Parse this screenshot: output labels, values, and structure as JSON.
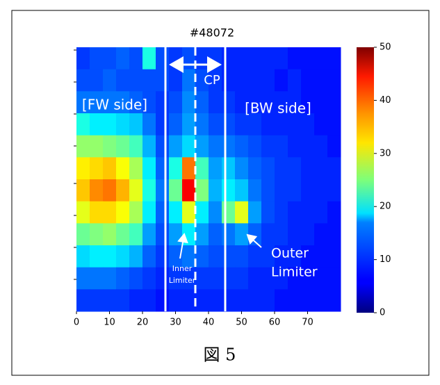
{
  "chart_data": {
    "type": "heatmap",
    "title": "#48072",
    "caption": "図 5",
    "xlim": [
      0,
      80
    ],
    "xticks": [
      0,
      10,
      20,
      30,
      40,
      50,
      60,
      70
    ],
    "colorbar": {
      "lim": [
        0,
        50
      ],
      "ticks": [
        0,
        10,
        20,
        30,
        40,
        50
      ],
      "colormap": "jet"
    },
    "annotations": {
      "cp": "CP",
      "fw": "[FW side]",
      "bw": "[BW side]",
      "inner": [
        "Inner",
        "Limiter"
      ],
      "outer": [
        "Outer",
        "Limiter"
      ]
    },
    "z": [
      [
        9,
        10,
        10,
        11,
        10,
        20,
        10,
        9,
        10,
        9,
        9,
        8,
        8,
        8,
        8,
        8,
        7,
        7,
        7,
        7
      ],
      [
        10,
        10,
        11,
        10,
        10,
        10,
        10,
        9,
        12,
        10,
        9,
        8,
        8,
        8,
        8,
        7,
        8,
        7,
        7,
        7
      ],
      [
        12,
        12,
        12,
        12,
        11,
        10,
        9,
        10,
        13,
        11,
        9,
        9,
        8,
        8,
        8,
        8,
        8,
        7,
        7,
        7
      ],
      [
        20,
        18,
        18,
        17,
        16,
        12,
        9,
        11,
        14,
        12,
        10,
        10,
        9,
        9,
        8,
        8,
        8,
        8,
        7,
        7
      ],
      [
        26,
        26,
        25,
        24,
        22,
        15,
        10,
        14,
        17,
        14,
        12,
        12,
        11,
        10,
        9,
        9,
        8,
        8,
        8,
        7
      ],
      [
        32,
        33,
        34,
        31,
        27,
        18,
        11,
        20,
        38,
        22,
        14,
        16,
        13,
        11,
        10,
        9,
        9,
        8,
        8,
        8
      ],
      [
        34,
        37,
        38,
        35,
        30,
        20,
        12,
        24,
        44,
        25,
        15,
        18,
        16,
        12,
        10,
        9,
        9,
        8,
        8,
        8
      ],
      [
        30,
        33,
        33,
        31,
        27,
        18,
        11,
        18,
        30,
        18,
        13,
        24,
        30,
        14,
        10,
        9,
        8,
        8,
        8,
        7
      ],
      [
        24,
        25,
        26,
        24,
        22,
        14,
        10,
        14,
        18,
        14,
        11,
        12,
        14,
        11,
        9,
        9,
        8,
        8,
        7,
        7
      ],
      [
        17,
        18,
        18,
        17,
        15,
        11,
        9,
        11,
        12,
        11,
        10,
        10,
        10,
        9,
        9,
        8,
        8,
        7,
        7,
        7
      ],
      [
        12,
        12,
        12,
        11,
        10,
        9,
        8,
        9,
        9,
        9,
        9,
        9,
        9,
        8,
        8,
        8,
        7,
        7,
        7,
        7
      ],
      [
        9,
        9,
        9,
        9,
        8,
        8,
        7,
        8,
        8,
        8,
        8,
        8,
        8,
        8,
        8,
        7,
        7,
        7,
        7,
        7
      ]
    ]
  }
}
